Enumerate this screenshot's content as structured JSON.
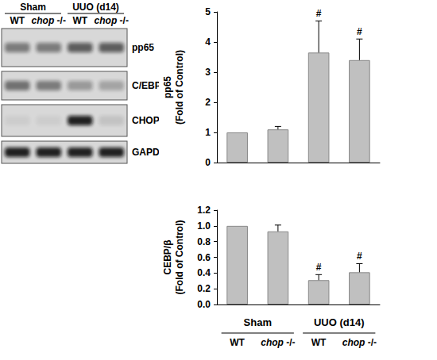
{
  "blot": {
    "groups": [
      "Sham",
      "UUO (d14)"
    ],
    "lanes": [
      "WT",
      "chop -/-",
      "WT",
      "chop -/-"
    ],
    "rows": [
      {
        "label": "pp65",
        "intensity": [
          0.45,
          0.45,
          0.6,
          0.6
        ]
      },
      {
        "label": "C/EBPβ",
        "intensity": [
          0.5,
          0.45,
          0.3,
          0.25
        ]
      },
      {
        "label": "CHOP",
        "intensity": [
          0.05,
          0.05,
          0.9,
          0.1
        ]
      },
      {
        "label": "GAPDH",
        "intensity": [
          0.9,
          0.9,
          0.9,
          0.9
        ]
      }
    ]
  },
  "chart_data": [
    {
      "type": "bar",
      "ylabel": "pp65\n(Fold of Control)",
      "categories": [
        null,
        null,
        null,
        null
      ],
      "values": [
        1.0,
        1.1,
        3.65,
        3.4
      ],
      "errors": [
        0,
        0.1,
        1.05,
        0.7
      ],
      "annotations": [
        {
          "index": 2,
          "text": "#"
        },
        {
          "index": 3,
          "text": "#"
        }
      ],
      "ylim": [
        0,
        5
      ],
      "yticks": [
        0,
        1,
        2,
        3,
        4,
        5
      ],
      "color": "#c0c0c0",
      "tick_labels": "y"
    },
    {
      "type": "bar",
      "ylabel": "CEBP/β\n(Fold of Control)",
      "categories": [
        "WT",
        "chop -/-",
        "WT",
        "chop -/-"
      ],
      "groups": [
        "Sham",
        "UUO (d14)"
      ],
      "values": [
        1.0,
        0.93,
        0.31,
        0.41
      ],
      "errors": [
        0,
        0.08,
        0.07,
        0.11
      ],
      "annotations": [
        {
          "index": 2,
          "text": "#"
        },
        {
          "index": 3,
          "text": "#"
        }
      ],
      "ylim": [
        0,
        1.2
      ],
      "yticks": [
        {
          "value": 0,
          "label": "0.0"
        },
        0.2,
        0.4,
        0.6,
        0.8,
        {
          "value": 1,
          "label": "1.0"
        },
        1.2
      ],
      "color": "#c0c0c0"
    }
  ]
}
